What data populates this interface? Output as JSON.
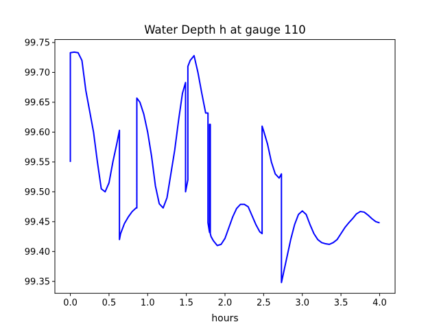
{
  "chart_data": {
    "type": "line",
    "title": "Water Depth h at gauge 110",
    "xlabel": "hours",
    "ylabel": "",
    "xlim": [
      -0.2,
      4.2
    ],
    "ylim": [
      99.33,
      99.755
    ],
    "xticks": [
      {
        "value": 0.0,
        "label": "0.0"
      },
      {
        "value": 0.5,
        "label": "0.5"
      },
      {
        "value": 1.0,
        "label": "1.0"
      },
      {
        "value": 1.5,
        "label": "1.5"
      },
      {
        "value": 2.0,
        "label": "2.0"
      },
      {
        "value": 2.5,
        "label": "2.5"
      },
      {
        "value": 3.0,
        "label": "3.0"
      },
      {
        "value": 3.5,
        "label": "3.5"
      },
      {
        "value": 4.0,
        "label": "4.0"
      }
    ],
    "yticks": [
      {
        "value": 99.35,
        "label": "99.35"
      },
      {
        "value": 99.4,
        "label": "99.40"
      },
      {
        "value": 99.45,
        "label": "99.45"
      },
      {
        "value": 99.5,
        "label": "99.50"
      },
      {
        "value": 99.55,
        "label": "99.55"
      },
      {
        "value": 99.6,
        "label": "99.60"
      },
      {
        "value": 99.65,
        "label": "99.65"
      },
      {
        "value": 99.7,
        "label": "99.70"
      },
      {
        "value": 99.75,
        "label": "99.75"
      }
    ],
    "grid": false,
    "legend": "none",
    "colors": {
      "line": "#0000ff",
      "axes": "#000000",
      "background": "#ffffff"
    },
    "series": [
      {
        "x": [
          0.0,
          0.0,
          0.05,
          0.1,
          0.15,
          0.2,
          0.25,
          0.3,
          0.35,
          0.4,
          0.45,
          0.5,
          0.55,
          0.6,
          0.635,
          0.635,
          0.65,
          0.7,
          0.75,
          0.8,
          0.85,
          0.86,
          0.86,
          0.9,
          0.95,
          1.0,
          1.05,
          1.1,
          1.15,
          1.2,
          1.25,
          1.3,
          1.35,
          1.4,
          1.45,
          1.49,
          1.49,
          1.52,
          1.52,
          1.55,
          1.6,
          1.65,
          1.7,
          1.75,
          1.78,
          1.78,
          1.8,
          1.8,
          1.81,
          1.81,
          1.82,
          1.85,
          1.9,
          1.95,
          2.0,
          2.05,
          2.1,
          2.15,
          2.2,
          2.25,
          2.3,
          2.35,
          2.4,
          2.45,
          2.48,
          2.48,
          2.5,
          2.55,
          2.6,
          2.65,
          2.7,
          2.73,
          2.73,
          2.75,
          2.8,
          2.85,
          2.9,
          2.95,
          3.0,
          3.05,
          3.1,
          3.15,
          3.2,
          3.25,
          3.3,
          3.35,
          3.4,
          3.45,
          3.5,
          3.55,
          3.6,
          3.65,
          3.7,
          3.75,
          3.8,
          3.85,
          3.9,
          3.95,
          4.0
        ],
        "y": [
          99.55,
          99.733,
          99.734,
          99.733,
          99.72,
          99.67,
          99.635,
          99.6,
          99.55,
          99.505,
          99.5,
          99.515,
          99.55,
          99.58,
          99.603,
          99.42,
          99.43,
          99.447,
          99.458,
          99.467,
          99.473,
          99.473,
          99.657,
          99.65,
          99.63,
          99.6,
          99.56,
          99.51,
          99.48,
          99.473,
          99.49,
          99.53,
          99.57,
          99.62,
          99.665,
          99.683,
          99.5,
          99.52,
          99.71,
          99.72,
          99.728,
          99.7,
          99.665,
          99.632,
          99.632,
          99.448,
          99.432,
          99.613,
          99.613,
          99.43,
          99.425,
          99.418,
          99.41,
          99.412,
          99.422,
          99.44,
          99.458,
          99.472,
          99.479,
          99.479,
          99.475,
          99.46,
          99.445,
          99.433,
          99.43,
          99.61,
          99.602,
          99.58,
          99.55,
          99.53,
          99.523,
          99.53,
          99.348,
          99.36,
          99.39,
          99.42,
          99.445,
          99.462,
          99.468,
          99.462,
          99.445,
          99.43,
          99.42,
          99.415,
          99.413,
          99.412,
          99.415,
          99.42,
          99.43,
          99.44,
          99.448,
          99.455,
          99.463,
          99.467,
          99.466,
          99.461,
          99.455,
          99.45,
          99.448
        ]
      }
    ]
  }
}
